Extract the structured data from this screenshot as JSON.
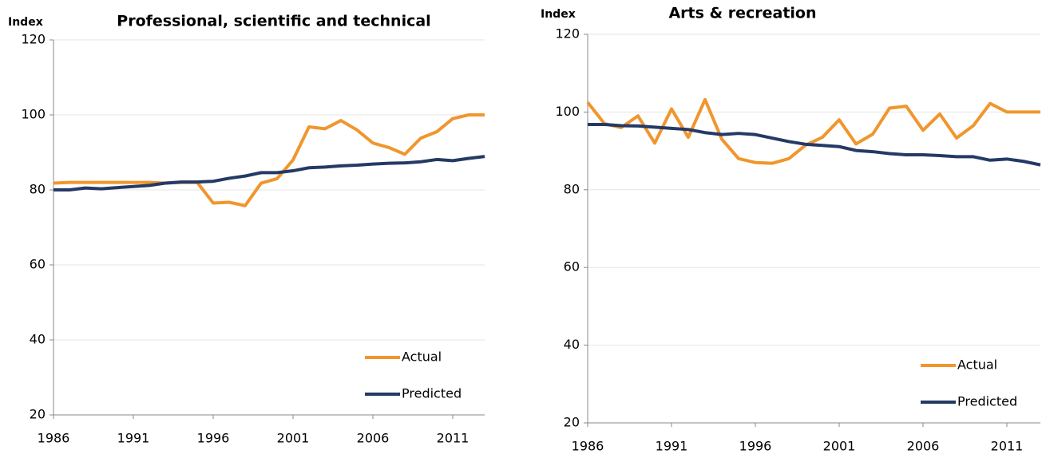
{
  "chart_data": [
    {
      "type": "line",
      "title": "Professional, scientific and technical",
      "ylabel": "Index",
      "x": [
        1986,
        1987,
        1988,
        1989,
        1990,
        1991,
        1992,
        1993,
        1994,
        1995,
        1996,
        1997,
        1998,
        1999,
        2000,
        2001,
        2002,
        2003,
        2004,
        2005,
        2006,
        2007,
        2008,
        2009,
        2010,
        2011,
        2012,
        2013
      ],
      "series": [
        {
          "name": "Actual",
          "color": "#f0962e",
          "values": [
            81.8,
            82,
            82,
            82,
            82,
            82,
            82,
            81.8,
            82,
            82,
            76.5,
            76.7,
            75.8,
            81.8,
            83,
            88,
            96.8,
            96.3,
            98.5,
            96,
            92.5,
            91.3,
            89.5,
            93.8,
            95.5,
            99,
            100,
            100
          ]
        },
        {
          "name": "Predicted",
          "color": "#243a66",
          "values": [
            80,
            80,
            80.5,
            80.3,
            80.6,
            80.9,
            81.2,
            81.8,
            82.1,
            82.1,
            82.3,
            83.1,
            83.7,
            84.6,
            84.6,
            85.1,
            85.9,
            86.1,
            86.4,
            86.6,
            86.9,
            87.1,
            87.2,
            87.5,
            88.1,
            87.8,
            88.4,
            88.9
          ]
        }
      ],
      "xlim": [
        1986,
        2013
      ],
      "xticks": [
        1986,
        1991,
        1996,
        2001,
        2006,
        2011
      ],
      "ylim": [
        20,
        120
      ],
      "yticks": [
        20,
        40,
        60,
        80,
        100,
        120
      ],
      "grid": true,
      "legend": "lower right"
    },
    {
      "type": "line",
      "title": "Arts & recreation",
      "ylabel": "Index",
      "x": [
        1986,
        1987,
        1988,
        1989,
        1990,
        1991,
        1992,
        1993,
        1994,
        1995,
        1996,
        1997,
        1998,
        1999,
        2000,
        2001,
        2002,
        2003,
        2004,
        2005,
        2006,
        2007,
        2008,
        2009,
        2010,
        2011,
        2012,
        2013
      ],
      "series": [
        {
          "name": "Actual",
          "color": "#f0962e",
          "values": [
            102.5,
            97,
            96,
            99,
            92,
            100.8,
            93.5,
            103.2,
            93,
            88,
            87,
            86.8,
            88,
            91.5,
            93.5,
            98,
            91.8,
            94.3,
            101,
            101.5,
            95.3,
            99.5,
            93.3,
            96.5,
            102.2,
            100,
            100,
            100
          ]
        },
        {
          "name": "Predicted",
          "color": "#243a66",
          "values": [
            96.8,
            96.8,
            96.5,
            96.4,
            96.1,
            95.8,
            95.5,
            94.7,
            94.2,
            94.5,
            94.2,
            93.3,
            92.4,
            91.7,
            91.4,
            91.1,
            90.1,
            89.8,
            89.3,
            89,
            89,
            88.8,
            88.5,
            88.5,
            87.6,
            87.9,
            87.3,
            86.4
          ]
        }
      ],
      "xlim": [
        1986,
        2013
      ],
      "xticks": [
        1986,
        1991,
        1996,
        2001,
        2006,
        2011
      ],
      "ylim": [
        20,
        120
      ],
      "yticks": [
        20,
        40,
        60,
        80,
        100,
        120
      ],
      "grid": true,
      "legend": "lower right"
    }
  ]
}
